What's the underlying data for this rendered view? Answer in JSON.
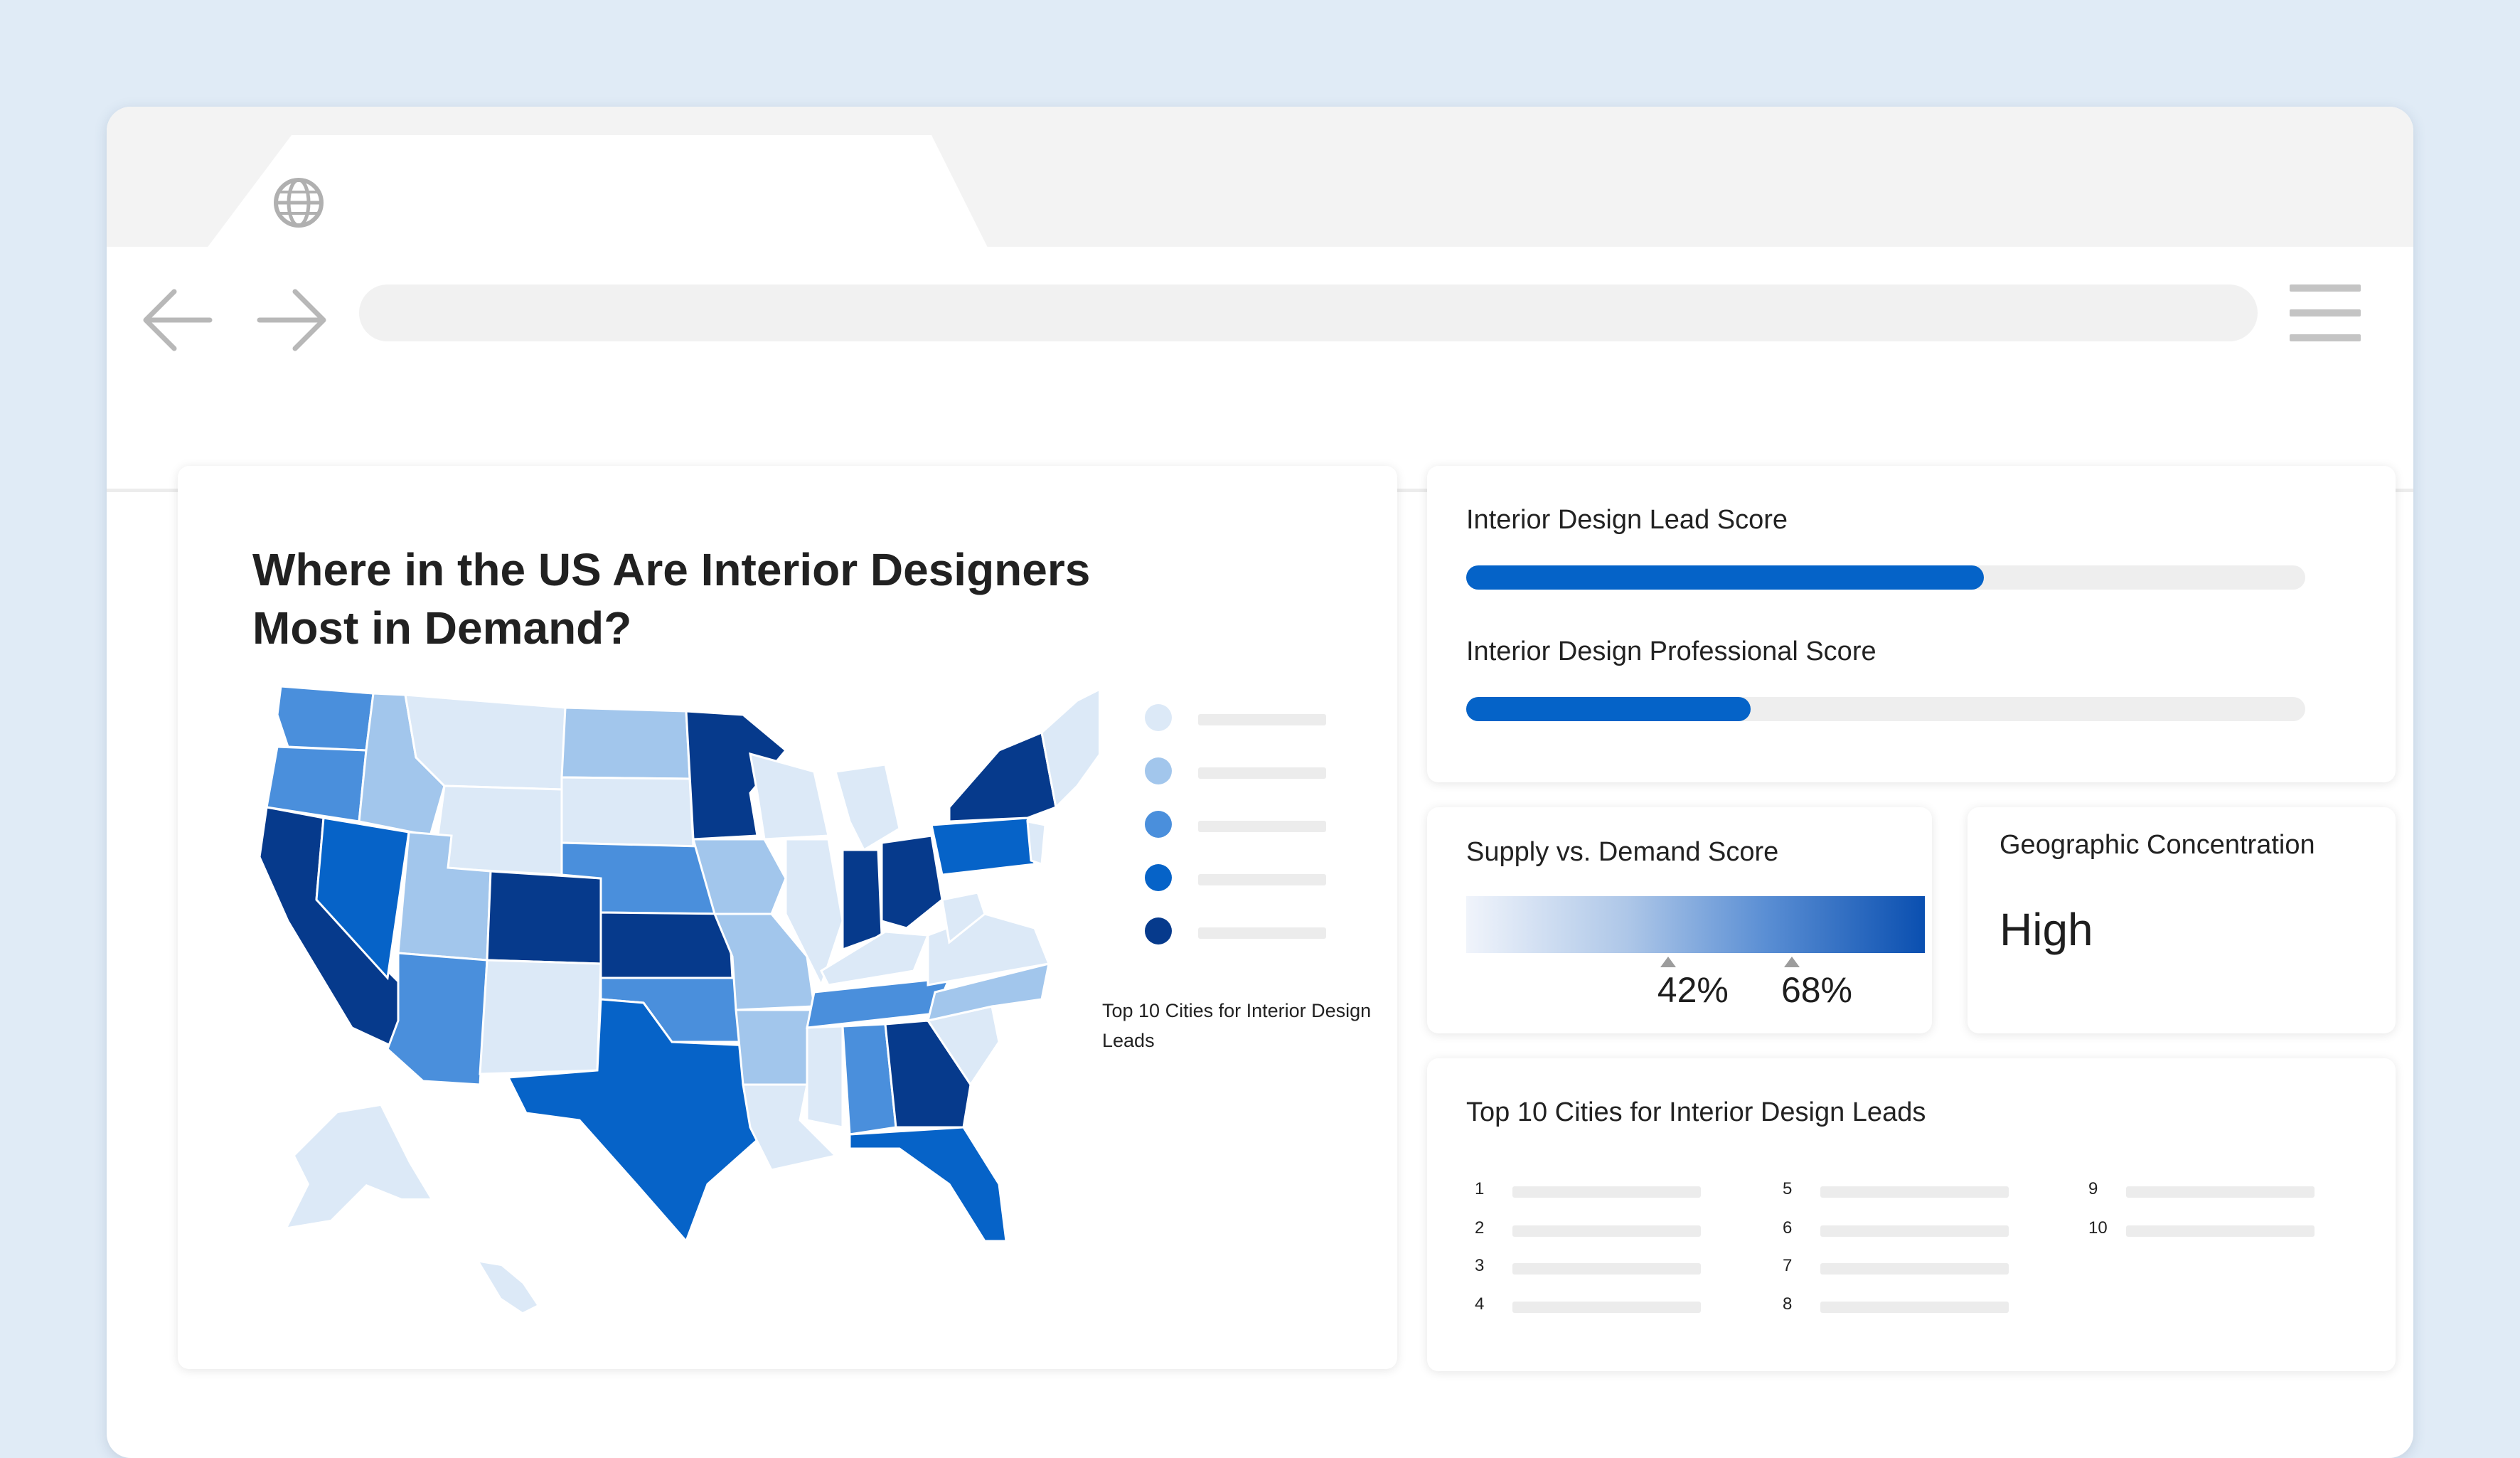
{
  "browser": {
    "tab_icon": "globe-icon",
    "back_icon": "arrow-left-icon",
    "forward_icon": "arrow-right-icon",
    "menu_icon": "hamburger-menu-icon",
    "url_value": ""
  },
  "map_card": {
    "title": "Where in the US Are Interior Designers Most in Demand?",
    "legend_colors": [
      "#dce9f7",
      "#a2c6ec",
      "#4a8fdc",
      "#0663c8",
      "#063a8c"
    ],
    "caption": "Top 10 Cities for Interior Design Leads"
  },
  "scores": {
    "lead_label": "Interior Design Lead Score",
    "lead_fraction": 0.617,
    "professional_label": "Interior Design Professional Score",
    "professional_fraction": 0.339,
    "accent": "#0563c8"
  },
  "supply_demand": {
    "title": "Supply vs. Demand Score",
    "markers": [
      {
        "value": "42%",
        "fraction": 0.44
      },
      {
        "value": "68%",
        "fraction": 0.71
      }
    ]
  },
  "geo": {
    "label": "Geographic Concentration",
    "value": "High"
  },
  "cities": {
    "title": "Top 10 Cities for Interior Design Leads",
    "ranks": [
      "1",
      "2",
      "3",
      "4",
      "5",
      "6",
      "7",
      "8",
      "9",
      "10"
    ]
  }
}
